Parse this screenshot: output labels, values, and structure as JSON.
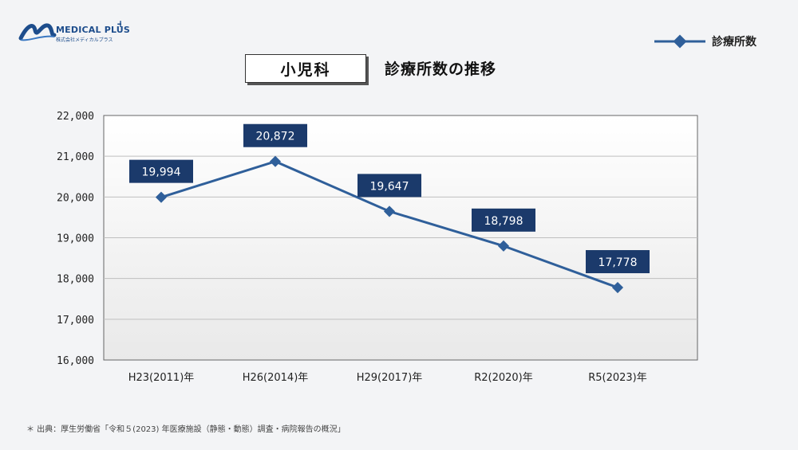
{
  "brand": {
    "name": "MEDICAL PLUS",
    "tagline": "株式会社メディカルプラス"
  },
  "title": {
    "boxed": "小児科",
    "main": "診療所数の推移"
  },
  "legend": {
    "label": "診療所数",
    "placement": "top-right"
  },
  "source": "＊ 出典：厚生労働省「令和５(2023) 年医療施設（静態・動態）調査・病院報告の概況」",
  "colors": {
    "line": "#2f5f9a",
    "label_bg": "#1b3a6b",
    "grid": "#bfbfbf"
  },
  "chart_data": {
    "type": "line",
    "categories": [
      "H23(2011)年",
      "H26(2014)年",
      "H29(2017)年",
      "R2(2020)年",
      "R5(2023)年"
    ],
    "series": [
      {
        "name": "診療所数",
        "values": [
          19994,
          20872,
          19647,
          18798,
          17778
        ]
      }
    ],
    "data_labels": [
      "19,994",
      "20,872",
      "19,647",
      "18,798",
      "17,778"
    ],
    "yticks": [
      "16,000",
      "17,000",
      "18,000",
      "19,000",
      "20,000",
      "21,000",
      "22,000"
    ],
    "ylim": [
      16000,
      22000
    ],
    "ystep": 1000,
    "grid": true
  }
}
